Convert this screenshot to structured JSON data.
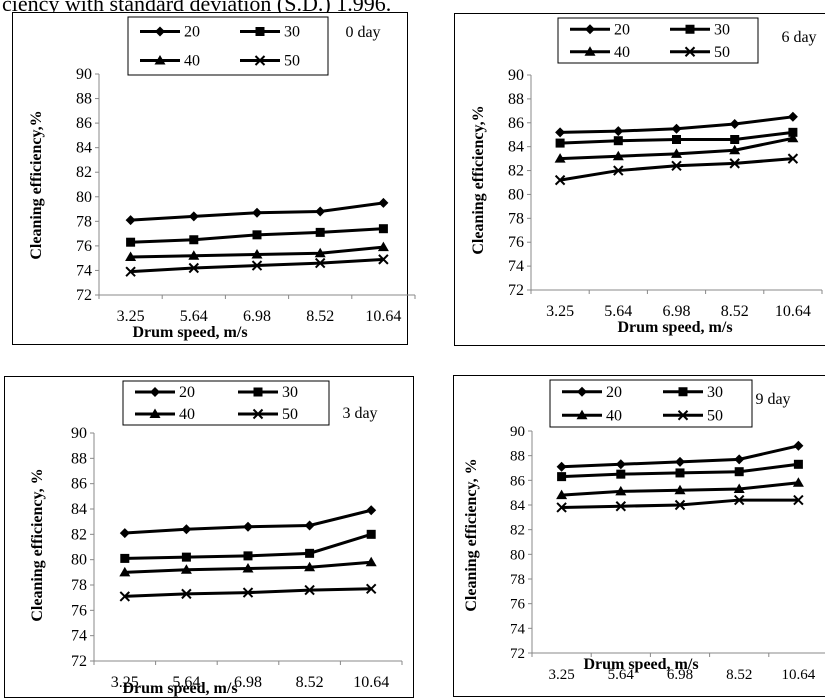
{
  "caption": "ciency with standard deviation (S.D.) 1.996.",
  "chart_data": [
    {
      "type": "line",
      "day_label": "0 day",
      "xlabel": "Drum speed, m/s",
      "ylabel": "Cleaning efficiency,%",
      "categories": [
        "3.25",
        "5.64",
        "6.98",
        "8.52",
        "10.64"
      ],
      "ylim": [
        72,
        90
      ],
      "yticks": [
        "72",
        "74",
        "76",
        "78",
        "80",
        "82",
        "84",
        "86",
        "88",
        "90"
      ],
      "grid": false,
      "legend": "top",
      "series": [
        {
          "name": "20",
          "marker": "diamond",
          "values": [
            78.1,
            78.4,
            78.7,
            78.8,
            79.5
          ]
        },
        {
          "name": "30",
          "marker": "square",
          "values": [
            76.3,
            76.5,
            76.9,
            77.1,
            77.4
          ]
        },
        {
          "name": "40",
          "marker": "triangle",
          "values": [
            75.1,
            75.2,
            75.3,
            75.4,
            75.9
          ]
        },
        {
          "name": "50",
          "marker": "x",
          "values": [
            73.9,
            74.2,
            74.4,
            74.6,
            74.9
          ]
        }
      ]
    },
    {
      "type": "line",
      "day_label": "6 day",
      "xlabel": "Drum speed, m/s",
      "ylabel": "Cleaning efficiency,%",
      "categories": [
        "3.25",
        "5.64",
        "6.98",
        "8.52",
        "10.64"
      ],
      "ylim": [
        72,
        90
      ],
      "yticks": [
        "72",
        "74",
        "76",
        "78",
        "80",
        "82",
        "84",
        "86",
        "88",
        "90"
      ],
      "grid": false,
      "legend": "top",
      "series": [
        {
          "name": "20",
          "marker": "diamond",
          "values": [
            85.2,
            85.3,
            85.5,
            85.9,
            86.5
          ]
        },
        {
          "name": "30",
          "marker": "square",
          "values": [
            84.3,
            84.5,
            84.6,
            84.6,
            85.2
          ]
        },
        {
          "name": "40",
          "marker": "triangle",
          "values": [
            83.0,
            83.2,
            83.4,
            83.7,
            84.7
          ]
        },
        {
          "name": "50",
          "marker": "x",
          "values": [
            81.2,
            82.0,
            82.4,
            82.6,
            83.0
          ]
        }
      ]
    },
    {
      "type": "line",
      "day_label": "3 day",
      "xlabel": "Drum speed, m/s",
      "ylabel": "Cleaning efficiency, %",
      "categories": [
        "3.25",
        "5.64",
        "6.98",
        "8.52",
        "10.64"
      ],
      "ylim": [
        72,
        90
      ],
      "yticks": [
        "72",
        "74",
        "76",
        "78",
        "80",
        "82",
        "84",
        "86",
        "88",
        "90"
      ],
      "grid": false,
      "legend": "top",
      "series": [
        {
          "name": "20",
          "marker": "diamond",
          "values": [
            82.1,
            82.4,
            82.6,
            82.7,
            83.9
          ]
        },
        {
          "name": "30",
          "marker": "square",
          "values": [
            80.1,
            80.2,
            80.3,
            80.5,
            82.0
          ]
        },
        {
          "name": "40",
          "marker": "triangle",
          "values": [
            79.0,
            79.2,
            79.3,
            79.4,
            79.8
          ]
        },
        {
          "name": "50",
          "marker": "x",
          "values": [
            77.1,
            77.3,
            77.4,
            77.6,
            77.7
          ]
        }
      ]
    },
    {
      "type": "line",
      "day_label": "9 day",
      "xlabel": "Drum speed, m/s",
      "ylabel": "Cleaning efficiency, %",
      "categories": [
        "3.25",
        "5.64",
        "6.98",
        "8.52",
        "10.64"
      ],
      "ylim": [
        72,
        90
      ],
      "yticks": [
        "72",
        "74",
        "76",
        "78",
        "80",
        "82",
        "84",
        "86",
        "88",
        "90"
      ],
      "grid": false,
      "legend": "top",
      "series": [
        {
          "name": "20",
          "marker": "diamond",
          "values": [
            87.1,
            87.3,
            87.5,
            87.7,
            88.8
          ]
        },
        {
          "name": "30",
          "marker": "square",
          "values": [
            86.3,
            86.5,
            86.6,
            86.7,
            87.3
          ]
        },
        {
          "name": "40",
          "marker": "triangle",
          "values": [
            84.8,
            85.1,
            85.2,
            85.3,
            85.8
          ]
        },
        {
          "name": "50",
          "marker": "x",
          "values": [
            83.8,
            83.9,
            84.0,
            84.4,
            84.4
          ]
        }
      ]
    }
  ]
}
